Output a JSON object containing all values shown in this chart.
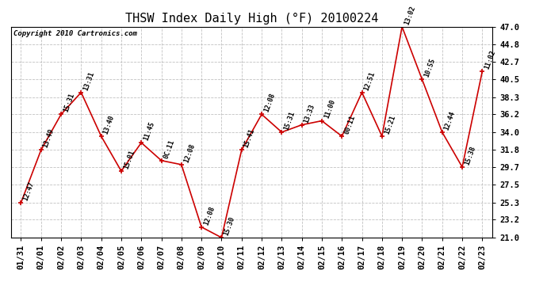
{
  "title": "THSW Index Daily High (°F) 20100224",
  "copyright": "Copyright 2010 Cartronics.com",
  "dates": [
    "01/31",
    "02/01",
    "02/02",
    "02/03",
    "02/04",
    "02/05",
    "02/06",
    "02/07",
    "02/08",
    "02/09",
    "02/10",
    "02/11",
    "02/12",
    "02/13",
    "02/14",
    "02/15",
    "02/16",
    "02/17",
    "02/18",
    "02/19",
    "02/20",
    "02/21",
    "02/22",
    "02/23"
  ],
  "values": [
    25.3,
    31.8,
    36.2,
    38.9,
    33.5,
    29.2,
    32.7,
    30.5,
    30.0,
    22.3,
    21.0,
    31.8,
    36.2,
    34.0,
    34.9,
    35.4,
    33.5,
    38.9,
    33.5,
    47.0,
    40.5,
    34.0,
    29.7,
    41.5
  ],
  "annotations": [
    "12:47",
    "13:49",
    "15:31",
    "13:31",
    "13:40",
    "15:01",
    "11:45",
    "0C:11",
    "12:08",
    "12:08",
    "15:30",
    "15:41",
    "12:08",
    "15:31",
    "13:33",
    "11:00",
    "00:11",
    "12:51",
    "15:21",
    "13:02",
    "10:55",
    "12:44",
    "15:38",
    "11:02"
  ],
  "ylim": [
    21.0,
    47.0
  ],
  "yticks": [
    21.0,
    23.2,
    25.3,
    27.5,
    29.7,
    31.8,
    34.0,
    36.2,
    38.3,
    40.5,
    42.7,
    44.8,
    47.0
  ],
  "line_color": "#cc0000",
  "marker_color": "#cc0000",
  "bg_color": "#ffffff",
  "grid_color": "#bbbbbb",
  "title_fontsize": 11,
  "annotation_fontsize": 6.0,
  "tick_fontsize": 7.5,
  "copyright_fontsize": 6.5
}
